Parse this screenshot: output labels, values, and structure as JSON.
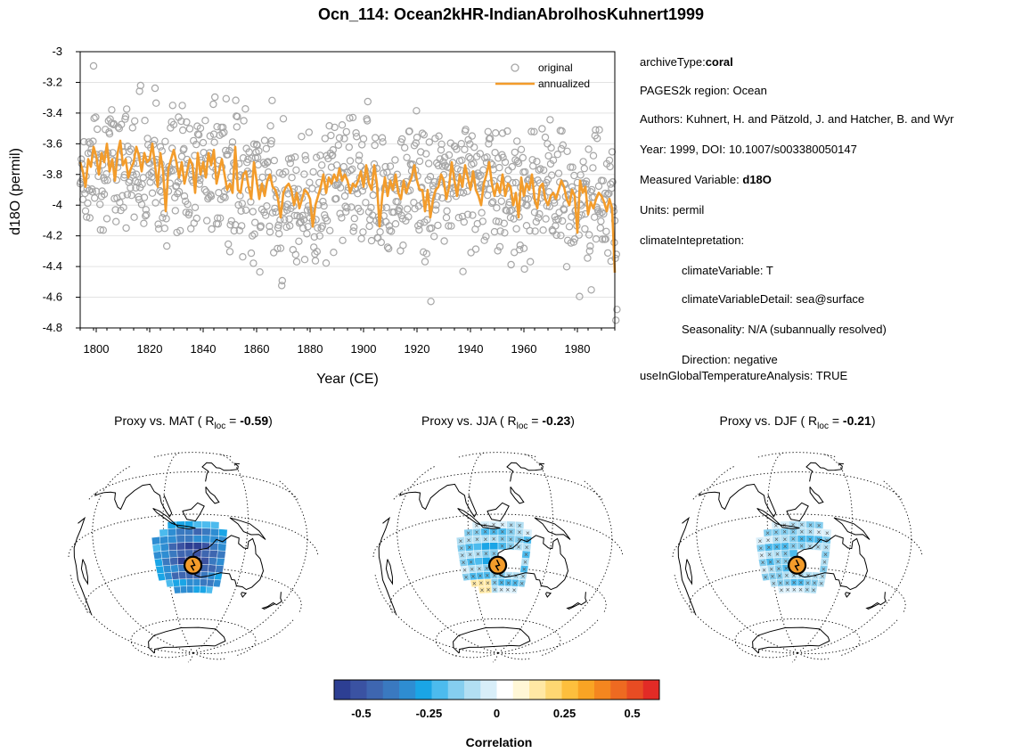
{
  "title": "Ocn_114: Ocean2kHR-IndianAbrolhosKuhnert1999",
  "metadata": {
    "archive_label": "archiveType:",
    "archive_value": "coral",
    "region": "PAGES2k region: Ocean",
    "authors": "Authors: Kuhnert, H. and Pätzold, J. and Hatcher, B. and Wyr",
    "year_doi": "Year: 1999, DOI: 10.1007/s003380050147",
    "measured_label": "Measured Variable: ",
    "measured_value": "d18O",
    "units": "Units: permil",
    "climate_interp": "climateIntepretation:",
    "climate_variable": "climateVariable: T",
    "climate_variable_detail": "climateVariableDetail: sea@surface",
    "seasonality": "Seasonality: N/A (subannually resolved)",
    "direction": "Direction: negative",
    "global_temp": "useInGlobalTemperatureAnalysis: TRUE"
  },
  "maps": [
    {
      "prefix": "Proxy vs. MAT ( R",
      "sub": "loc",
      "mid": " =  ",
      "value": "-0.59",
      "suffix": ")",
      "r": -0.59
    },
    {
      "prefix": "Proxy vs. JJA ( R",
      "sub": "loc",
      "mid": " =  ",
      "value": "-0.23",
      "suffix": ")",
      "r": -0.23
    },
    {
      "prefix": "Proxy vs. DJF ( R",
      "sub": "loc",
      "mid": " =  ",
      "value": "-0.21",
      "suffix": ")",
      "r": -0.21
    }
  ],
  "colors": {
    "scatter": "#a6a6a6",
    "line": "#f39c2b",
    "proxy_marker": "#f39c2b"
  },
  "colorbar": {
    "label": "Correlation",
    "ticks": [
      "-0.5",
      "-0.25",
      "0",
      "0.25",
      "0.5"
    ],
    "tick_values": [
      -0.5,
      -0.25,
      0,
      0.25,
      0.5
    ],
    "range": [
      -0.6,
      0.6
    ],
    "colors": [
      "#2d3f93",
      "#3a52a2",
      "#3e66b0",
      "#3a79c0",
      "#2e8dd2",
      "#1aa5e6",
      "#4cbbee",
      "#85ceef",
      "#b2dff3",
      "#d8eef9",
      "#ffffff",
      "#fff7d6",
      "#ffe8a4",
      "#fed772",
      "#fdbf3d",
      "#f9a424",
      "#f4861f",
      "#ee6a21",
      "#e84c23",
      "#e22b26"
    ]
  },
  "chart_data": {
    "type": "scatter",
    "title": "Ocn_114: Ocean2kHR-IndianAbrolhosKuhnert1999",
    "xlabel": "Year (CE)",
    "ylabel": "d18O (permil)",
    "xlim": [
      1794,
      1994
    ],
    "ylim": [
      -4.8,
      -3
    ],
    "xticks": [
      1800,
      1820,
      1840,
      1860,
      1880,
      1900,
      1920,
      1940,
      1960,
      1980
    ],
    "yticks": [
      -4.8,
      -4.6,
      -4.4,
      -4.2,
      -4,
      -3.8,
      -3.6,
      -3.4,
      -3.2,
      -3
    ],
    "ytick_labels": [
      "-4.8",
      "-4.6",
      "-4.4",
      "-4.2",
      "-4",
      "-3.8",
      "-3.6",
      "-3.4",
      "-3.2",
      "-3"
    ],
    "legend": {
      "placement": "top-right"
    },
    "series": [
      {
        "name": "original",
        "kind": "scatter",
        "subannual_per_year": 5,
        "annual_mean": [
          -3.72,
          -3.78,
          -3.88,
          -3.7,
          -3.75,
          -3.62,
          -3.68,
          -3.8,
          -3.66,
          -3.72,
          -3.6,
          -3.78,
          -3.7,
          -3.84,
          -3.66,
          -3.58,
          -3.74,
          -3.7,
          -3.82,
          -3.76,
          -3.72,
          -3.62,
          -3.68,
          -3.78,
          -3.66,
          -3.72,
          -3.7,
          -3.6,
          -3.74,
          -3.88,
          -3.66,
          -3.78,
          -4.04,
          -3.76,
          -3.7,
          -3.64,
          -3.72,
          -3.82,
          -3.72,
          -3.86,
          -3.78,
          -3.7,
          -3.74,
          -3.92,
          -3.66,
          -3.8,
          -3.72,
          -3.82,
          -3.66,
          -3.74,
          -3.64,
          -3.86,
          -3.78,
          -3.7,
          -3.8,
          -3.9,
          -3.86,
          -3.92,
          -3.62,
          -3.9,
          -3.92,
          -3.8,
          -3.78,
          -3.88,
          -3.96,
          -3.72,
          -3.84,
          -3.96,
          -3.86,
          -3.94,
          -3.84,
          -3.8,
          -3.88,
          -3.9,
          -3.96,
          -4.08,
          -3.92,
          -3.88,
          -3.86,
          -3.9,
          -4.0,
          -3.92,
          -4.02,
          -3.96,
          -3.9,
          -3.92,
          -3.96,
          -4.14,
          -4.0,
          -3.94,
          -3.88,
          -3.8,
          -3.92,
          -3.82,
          -3.86,
          -3.8,
          -3.84,
          -3.76,
          -3.84,
          -3.8,
          -3.84,
          -3.92,
          -3.86,
          -3.88,
          -3.84,
          -3.78,
          -3.88,
          -3.74,
          -3.86,
          -3.9,
          -3.74,
          -3.86,
          -4.14,
          -3.94,
          -3.82,
          -3.94,
          -3.84,
          -3.9,
          -3.8,
          -3.92,
          -3.96,
          -3.84,
          -3.92,
          -3.86,
          -3.82,
          -3.74,
          -3.84,
          -3.9,
          -3.9,
          -4.04,
          -3.9,
          -4.08,
          -3.96,
          -3.9,
          -3.88,
          -3.8,
          -3.84,
          -3.96,
          -3.88,
          -3.72,
          -3.84,
          -3.94,
          -3.8,
          -3.88,
          -3.74,
          -3.82,
          -3.9,
          -3.78,
          -3.9,
          -3.94,
          -4.0,
          -3.86,
          -3.8,
          -3.72,
          -3.86,
          -3.94,
          -3.86,
          -3.92,
          -3.8,
          -3.94,
          -3.86,
          -3.88,
          -4.0,
          -3.92,
          -4.08,
          -3.82,
          -3.94,
          -3.86,
          -3.9,
          -3.8,
          -3.96,
          -4.02,
          -3.88,
          -3.86,
          -3.96,
          -4.0,
          -3.94,
          -3.92,
          -3.96,
          -3.9,
          -3.84,
          -3.88,
          -3.96,
          -4.0,
          -3.9,
          -3.94,
          -4.18,
          -3.84,
          -3.92,
          -3.88,
          -4.06,
          -3.98,
          -4.02,
          -3.96,
          -3.92,
          -3.94,
          -3.98,
          -4.04,
          -3.96,
          -4.02,
          -4.44
        ]
      },
      {
        "name": "annualized",
        "kind": "line",
        "x": [
          1794,
          1795,
          1796,
          1797,
          1798,
          1799,
          1800,
          1801,
          1802,
          1803,
          1804,
          1805,
          1806,
          1807,
          1808,
          1809,
          1810,
          1811,
          1812,
          1813,
          1814,
          1815,
          1816,
          1817,
          1818,
          1819,
          1820,
          1821,
          1822,
          1823,
          1824,
          1825,
          1826,
          1827,
          1828,
          1829,
          1830,
          1831,
          1832,
          1833,
          1834,
          1835,
          1836,
          1837,
          1838,
          1839,
          1840,
          1841,
          1842,
          1843,
          1844,
          1845,
          1846,
          1847,
          1848,
          1849,
          1850,
          1851,
          1852,
          1853,
          1854,
          1855,
          1856,
          1857,
          1858,
          1859,
          1860,
          1861,
          1862,
          1863,
          1864,
          1865,
          1866,
          1867,
          1868,
          1869,
          1870,
          1871,
          1872,
          1873,
          1874,
          1875,
          1876,
          1877,
          1878,
          1879,
          1880,
          1881,
          1882,
          1883,
          1884,
          1885,
          1886,
          1887,
          1888,
          1889,
          1890,
          1891,
          1892,
          1893,
          1894,
          1895,
          1896,
          1897,
          1898,
          1899,
          1900,
          1901,
          1902,
          1903,
          1904,
          1905,
          1906,
          1907,
          1908,
          1909,
          1910,
          1911,
          1912,
          1913,
          1914,
          1915,
          1916,
          1917,
          1918,
          1919,
          1920,
          1921,
          1922,
          1923,
          1924,
          1925,
          1926,
          1927,
          1928,
          1929,
          1930,
          1931,
          1932,
          1933,
          1934,
          1935,
          1936,
          1937,
          1938,
          1939,
          1940,
          1941,
          1942,
          1943,
          1944,
          1945,
          1946,
          1947,
          1948,
          1949,
          1950,
          1951,
          1952,
          1953,
          1954,
          1955,
          1956,
          1957,
          1958,
          1959,
          1960,
          1961,
          1962,
          1963,
          1964,
          1965,
          1966,
          1967,
          1968,
          1969,
          1970,
          1971,
          1972,
          1973,
          1974,
          1975,
          1976,
          1977,
          1978,
          1979,
          1980,
          1981,
          1982,
          1983,
          1984,
          1985,
          1986,
          1987,
          1988,
          1989,
          1990,
          1991,
          1992,
          1993,
          1994
        ],
        "y": [
          -3.72,
          -3.78,
          -3.88,
          -3.7,
          -3.75,
          -3.62,
          -3.68,
          -3.8,
          -3.66,
          -3.72,
          -3.6,
          -3.78,
          -3.7,
          -3.84,
          -3.66,
          -3.58,
          -3.74,
          -3.7,
          -3.82,
          -3.76,
          -3.72,
          -3.62,
          -3.68,
          -3.78,
          -3.66,
          -3.72,
          -3.7,
          -3.6,
          -3.74,
          -3.88,
          -3.66,
          -3.78,
          -4.04,
          -3.76,
          -3.7,
          -3.64,
          -3.72,
          -3.82,
          -3.72,
          -3.86,
          -3.78,
          -3.7,
          -3.74,
          -3.92,
          -3.66,
          -3.8,
          -3.72,
          -3.82,
          -3.66,
          -3.74,
          -3.64,
          -3.86,
          -3.78,
          -3.7,
          -3.8,
          -3.9,
          -3.86,
          -3.92,
          -3.62,
          -3.9,
          -3.92,
          -3.8,
          -3.78,
          -3.88,
          -3.96,
          -3.72,
          -3.84,
          -3.96,
          -3.86,
          -3.94,
          -3.84,
          -3.8,
          -3.88,
          -3.9,
          -3.96,
          -4.08,
          -3.92,
          -3.88,
          -3.86,
          -3.9,
          -4.0,
          -3.92,
          -4.02,
          -3.96,
          -3.9,
          -3.92,
          -3.96,
          -4.14,
          -4.0,
          -3.94,
          -3.88,
          -3.8,
          -3.92,
          -3.82,
          -3.86,
          -3.8,
          -3.84,
          -3.76,
          -3.84,
          -3.8,
          -3.84,
          -3.92,
          -3.86,
          -3.88,
          -3.84,
          -3.78,
          -3.88,
          -3.74,
          -3.86,
          -3.9,
          -3.74,
          -3.86,
          -4.14,
          -3.94,
          -3.82,
          -3.94,
          -3.84,
          -3.9,
          -3.8,
          -3.92,
          -3.96,
          -3.84,
          -3.92,
          -3.86,
          -3.82,
          -3.74,
          -3.84,
          -3.9,
          -3.9,
          -4.04,
          -3.9,
          -4.08,
          -3.96,
          -3.9,
          -3.88,
          -3.8,
          -3.84,
          -3.96,
          -3.88,
          -3.72,
          -3.84,
          -3.94,
          -3.8,
          -3.88,
          -3.74,
          -3.82,
          -3.9,
          -3.78,
          -3.9,
          -3.94,
          -4.0,
          -3.86,
          -3.8,
          -3.72,
          -3.86,
          -3.94,
          -3.86,
          -3.92,
          -3.8,
          -3.94,
          -3.86,
          -3.88,
          -4.0,
          -3.92,
          -4.08,
          -3.82,
          -3.94,
          -3.86,
          -3.9,
          -3.8,
          -3.96,
          -4.02,
          -3.88,
          -3.86,
          -3.96,
          -4.0,
          -3.94,
          -3.92,
          -3.96,
          -3.9,
          -3.84,
          -3.88,
          -3.96,
          -4.0,
          -3.9,
          -3.94,
          -4.18,
          -3.84,
          -3.92,
          -3.88,
          -4.06,
          -3.98,
          -4.02,
          -3.96,
          -3.92,
          -3.94,
          -3.98,
          -4.04,
          -3.96,
          -4.02,
          -4.44
        ]
      }
    ]
  }
}
